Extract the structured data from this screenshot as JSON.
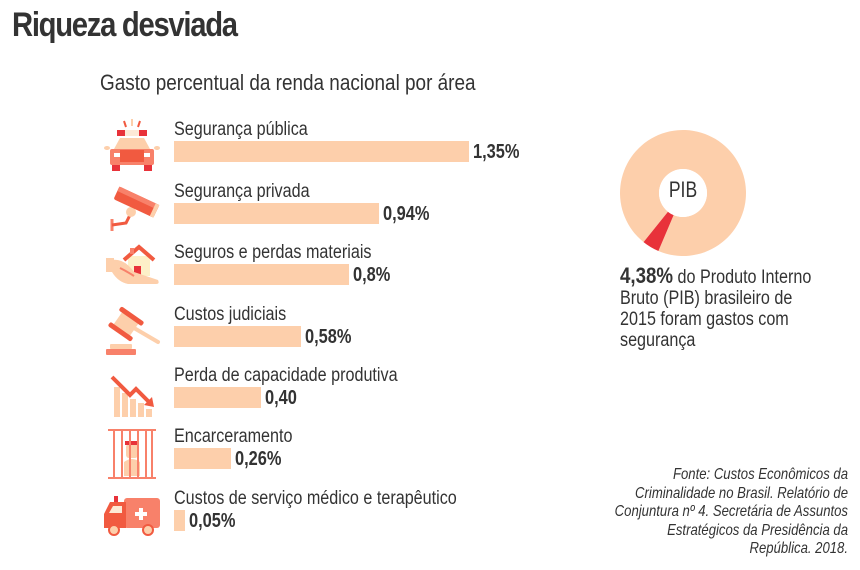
{
  "header": {
    "title": "Riqueza desviada",
    "subtitle": "Gasto percentual da renda nacional por área"
  },
  "colors": {
    "bar": "#fdcfab",
    "accent_red": "#e8323a",
    "icon_dark": "#f15a40",
    "icon_mid": "#f8816a",
    "icon_light": "#fdcfab",
    "text": "#333333"
  },
  "chart_data": [
    {
      "type": "bar",
      "orientation": "horizontal",
      "title": "Gasto percentual da renda nacional por área",
      "xlabel": "",
      "ylabel": "",
      "categories": [
        "Segurança pública",
        "Segurança privada",
        "Seguros e perdas materiais",
        "Custos judiciais",
        "Perda de capacidade produtiva",
        "Encarceramento",
        "Custos de serviço médico e terapêutico"
      ],
      "values": [
        1.35,
        0.94,
        0.8,
        0.58,
        0.4,
        0.26,
        0.05
      ],
      "value_labels": [
        "1,35%",
        "0,94%",
        "0,8%",
        "0,58%",
        "0,40",
        "0,26%",
        "0,05%"
      ],
      "icons": [
        "police-car-icon",
        "security-camera-icon",
        "house-in-hand-icon",
        "gavel-icon",
        "declining-chart-icon",
        "prisoner-behind-bars-icon",
        "ambulance-icon"
      ],
      "grid": false,
      "xlim": [
        0,
        1.35
      ]
    },
    {
      "type": "pie",
      "style": "donut",
      "center_label": "PIB",
      "slices": [
        {
          "name": "Segurança",
          "value": 4.38
        },
        {
          "name": "Restante do PIB",
          "value": 95.62
        }
      ]
    }
  ],
  "pib_note": {
    "highlight": "4,38%",
    "text": " do Produto Interno Bruto (PIB) brasileiro de 2015 foram gastos com segurança"
  },
  "source": "Fonte: Custos Econômicos da Criminalidade no Brasil. Relatório de Conjuntura nº 4. Secretária de Assuntos Estratégicos da Presidência da República. 2018."
}
